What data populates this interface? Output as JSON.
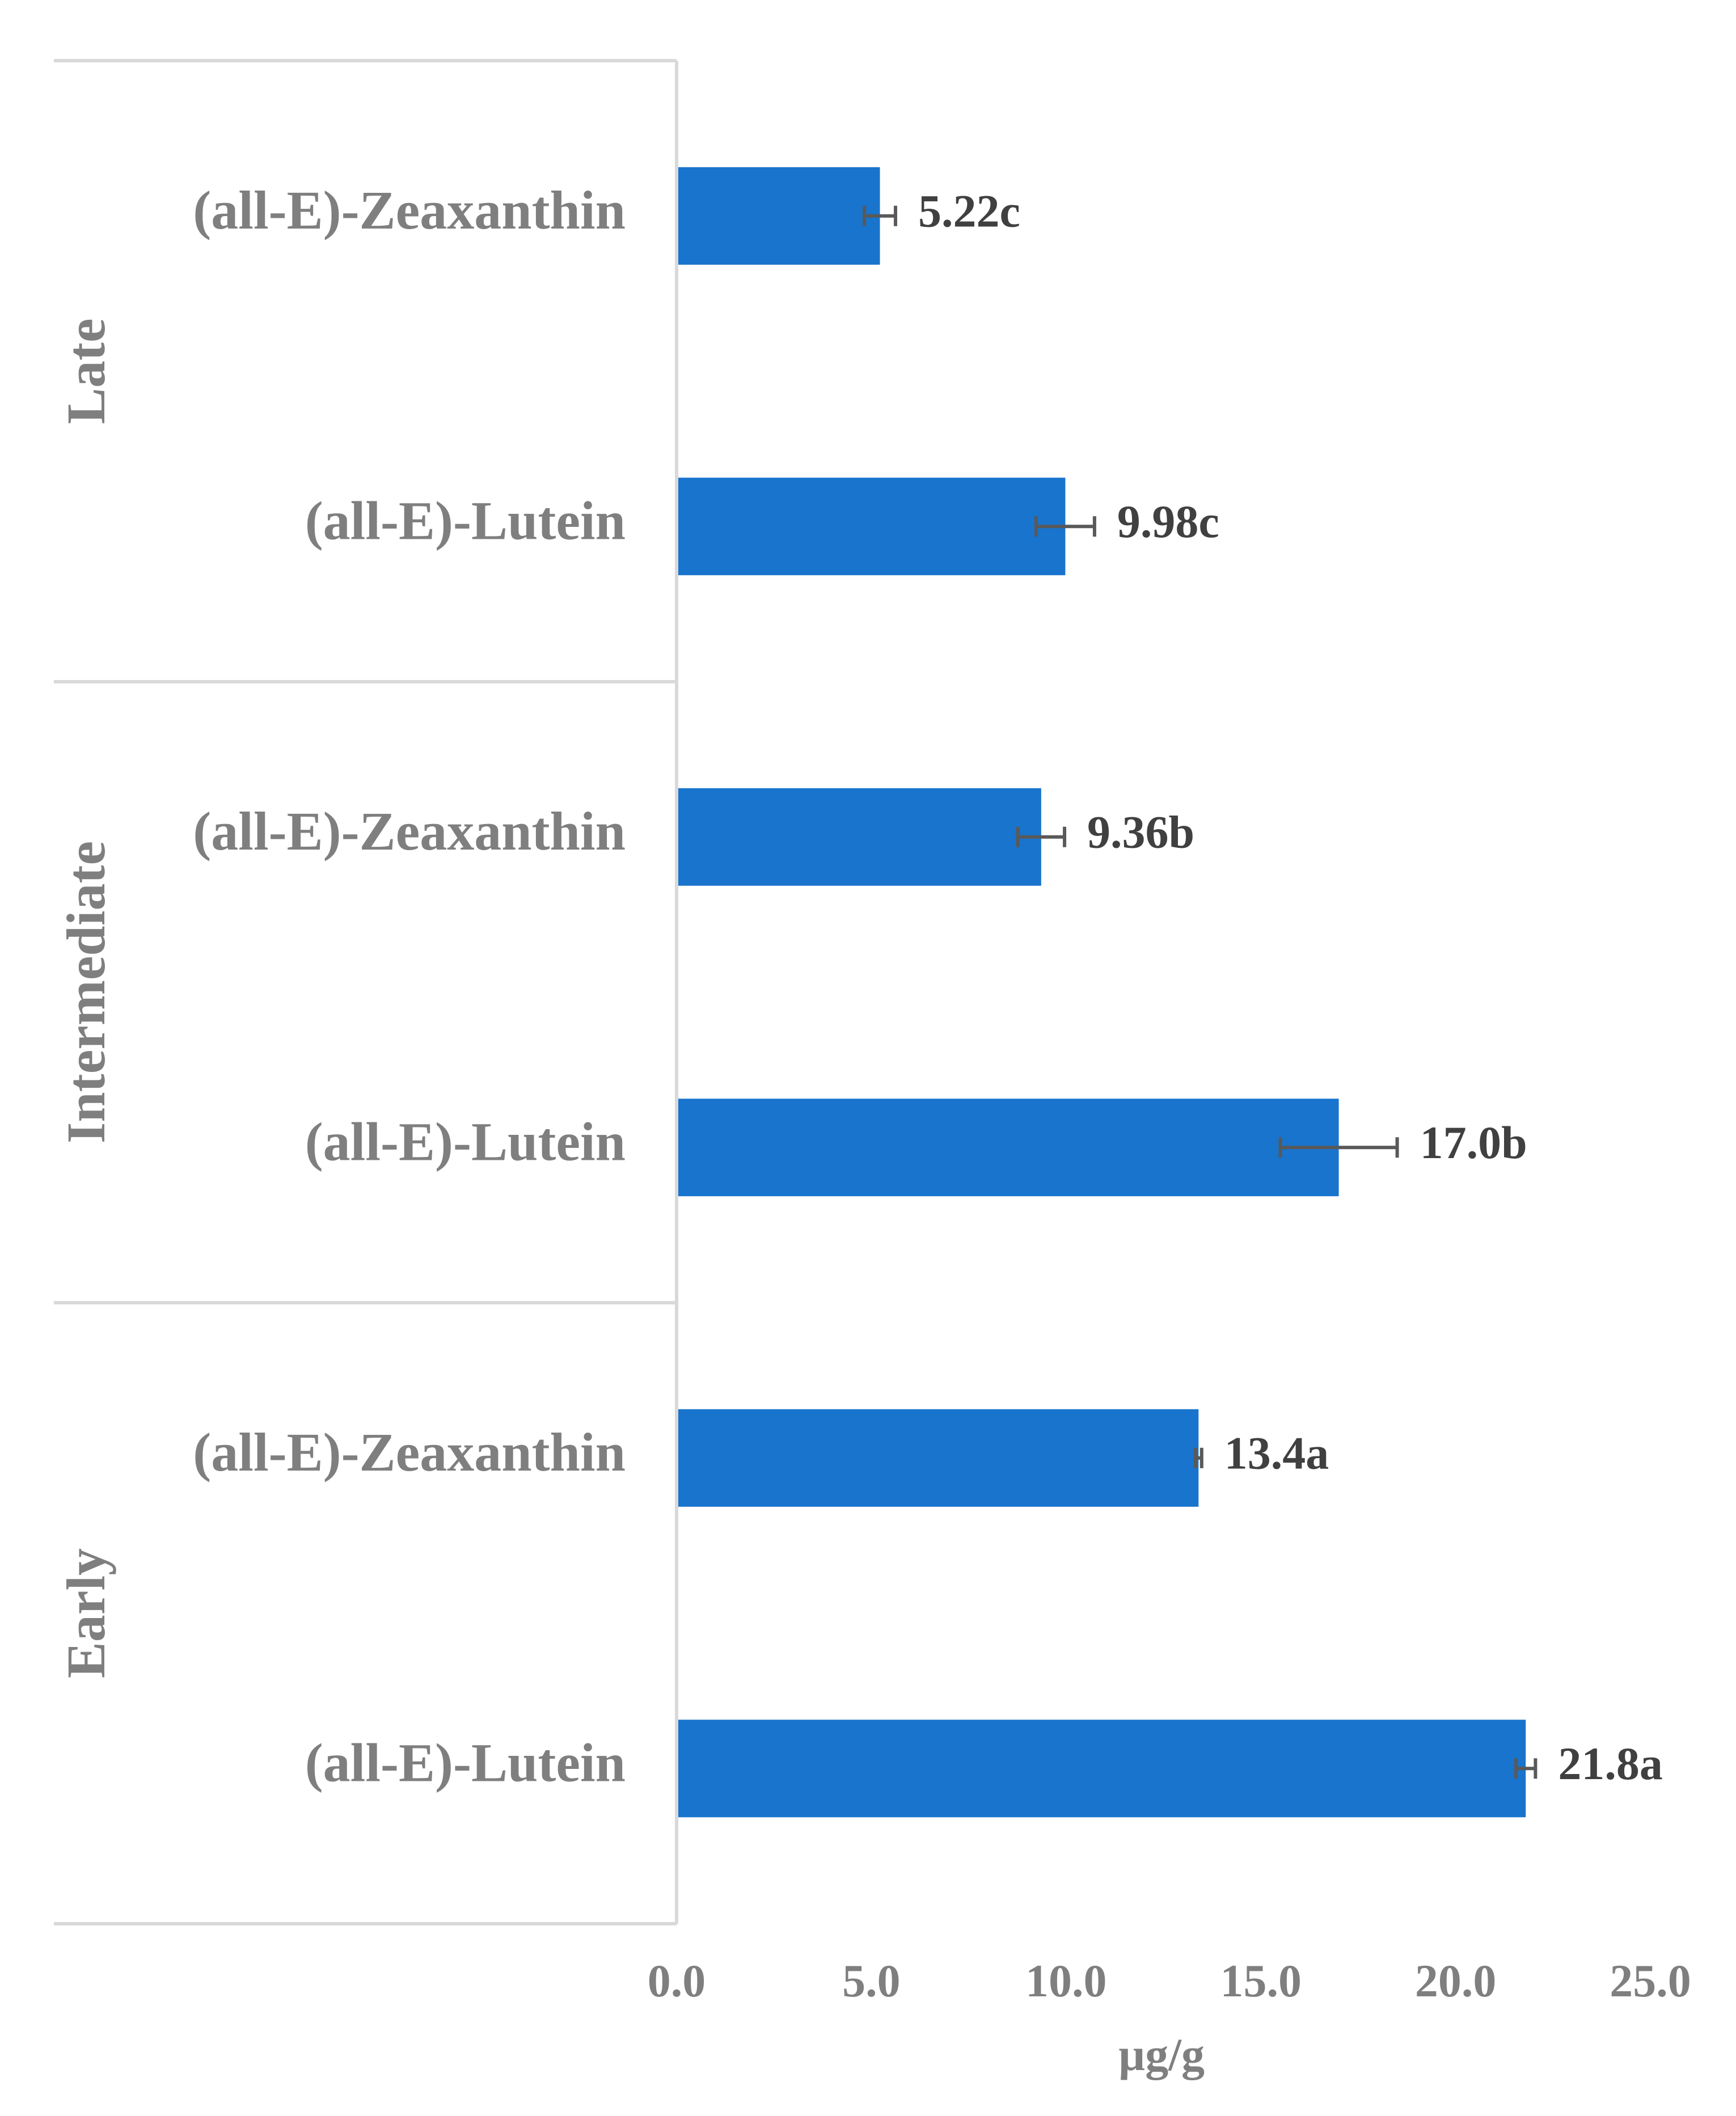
{
  "chart_data": {
    "type": "bar",
    "orientation": "horizontal",
    "xlabel": "µg/g",
    "xlim": [
      0,
      25
    ],
    "xticks": [
      "0.0",
      "5.0",
      "10.0",
      "15.0",
      "20.0",
      "25.0"
    ],
    "bar_color": "#1874CD",
    "grid": false,
    "groups": [
      {
        "name": "Late",
        "bars": [
          {
            "category": "(all-E)-Zeaxanthin",
            "value": 5.22,
            "error": 0.4,
            "label": "5.22c"
          },
          {
            "category": "(all-E)-Lutein",
            "value": 9.98,
            "error": 0.75,
            "label": "9.98c"
          }
        ]
      },
      {
        "name": "Intermediate",
        "bars": [
          {
            "category": "(all-E)-Zeaxanthin",
            "value": 9.36,
            "error": 0.6,
            "label": "9.36b"
          },
          {
            "category": "(all-E)-Lutein",
            "value": 17.0,
            "error": 1.5,
            "label": "17.0b"
          }
        ]
      },
      {
        "name": "Early",
        "bars": [
          {
            "category": "(all-E)-Zeaxanthin",
            "value": 13.4,
            "error": 0.08,
            "label": "13.4a"
          },
          {
            "category": "(all-E)-Lutein",
            "value": 21.8,
            "error": 0.25,
            "label": "21.8a"
          }
        ]
      }
    ]
  }
}
